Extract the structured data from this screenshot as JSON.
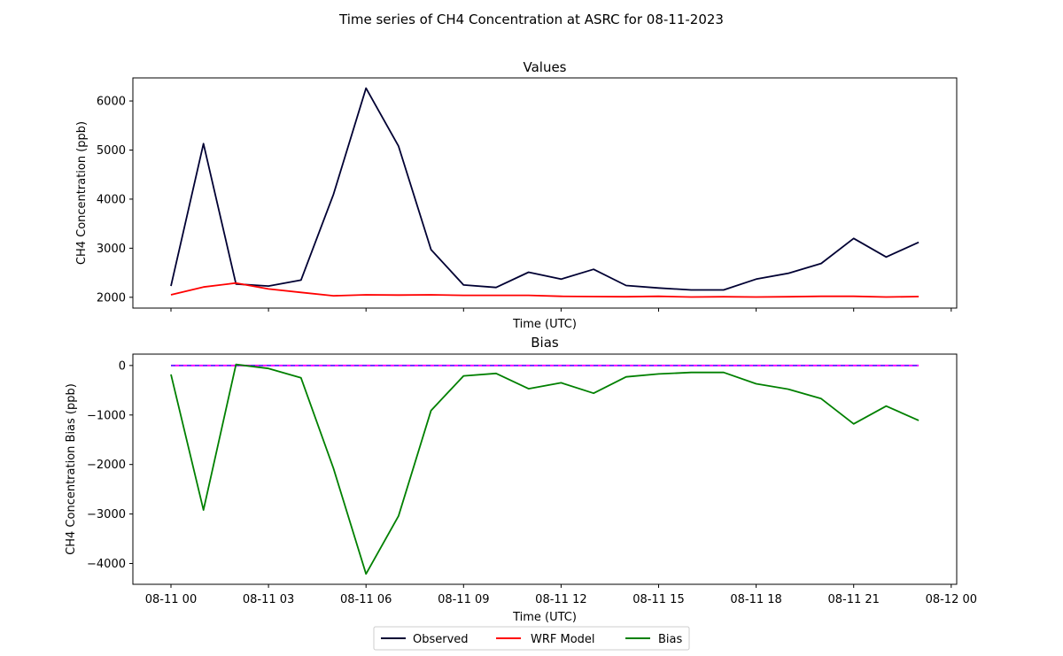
{
  "chart_data": {
    "type": "line",
    "title": "Time series of CH4 Concentration at ASRC for 08-11-2023",
    "x": [
      "08-11 00:00",
      "08-11 01:00",
      "08-11 02:00",
      "08-11 03:00",
      "08-11 04:00",
      "08-11 05:00",
      "08-11 06:00",
      "08-11 07:00",
      "08-11 08:00",
      "08-11 09:00",
      "08-11 10:00",
      "08-11 11:00",
      "08-11 12:00",
      "08-11 13:00",
      "08-11 14:00",
      "08-11 15:00",
      "08-11 16:00",
      "08-11 17:00",
      "08-11 18:00",
      "08-11 19:00",
      "08-11 20:00",
      "08-11 21:00",
      "08-11 22:00",
      "08-11 23:00"
    ],
    "xlabel": "Time (UTC)",
    "xticks": [
      "08-11 00",
      "08-11 03",
      "08-11 06",
      "08-11 09",
      "08-11 12",
      "08-11 15",
      "08-11 18",
      "08-11 21",
      "08-12 00"
    ],
    "legend": {
      "placement": "bottom-center",
      "entries": [
        "Observed",
        "WRF Model",
        "Bias"
      ]
    },
    "colors": {
      "observed": "#000033",
      "model": "#ff0000",
      "bias": "#008000",
      "zero": "#ff00ff",
      "zero_dash": "#1f3fff"
    },
    "grid": false,
    "panels": [
      {
        "title": "Values",
        "ylabel": "CH4 Concentration (ppb)",
        "xlabel": "Time (UTC)",
        "show_xticklabels": false,
        "ylim": [
          1780,
          6470
        ],
        "yticks": [
          2000,
          3000,
          4000,
          5000,
          6000
        ],
        "series": [
          {
            "name": "Observed",
            "color": "#000033",
            "values": [
              2230,
              5130,
              2270,
              2230,
              2350,
              4100,
              6260,
              5080,
              2970,
              2250,
              2200,
              2510,
              2370,
              2570,
              2240,
              2190,
              2150,
              2150,
              2370,
              2490,
              2690,
              3200,
              2820,
              3120
            ]
          },
          {
            "name": "WRF Model",
            "color": "#ff0000",
            "values": [
              2050,
              2210,
              2290,
              2170,
              2100,
              2030,
              2050,
              2045,
              2050,
              2040,
              2040,
              2040,
              2020,
              2015,
              2010,
              2020,
              2005,
              2010,
              2005,
              2010,
              2020,
              2020,
              2005,
              2015
            ]
          }
        ]
      },
      {
        "title": "Bias",
        "ylabel": "CH4 Concentration Bias (ppb)",
        "xlabel": "Time (UTC)",
        "show_xticklabels": true,
        "ylim": [
          -4420,
          230
        ],
        "yticks": [
          0,
          -1000,
          -2000,
          -3000,
          -4000
        ],
        "series": [
          {
            "name": "Bias",
            "color": "#008000",
            "values": [
              -180,
              -2920,
              20,
              -60,
              -250,
              -2080,
              -4210,
              -3040,
              -910,
              -210,
              -160,
              -470,
              -350,
              -560,
              -230,
              -170,
              -140,
              -140,
              -370,
              -480,
              -670,
              -1180,
              -820,
              -1110
            ]
          }
        ],
        "zero_line": 0
      }
    ]
  }
}
